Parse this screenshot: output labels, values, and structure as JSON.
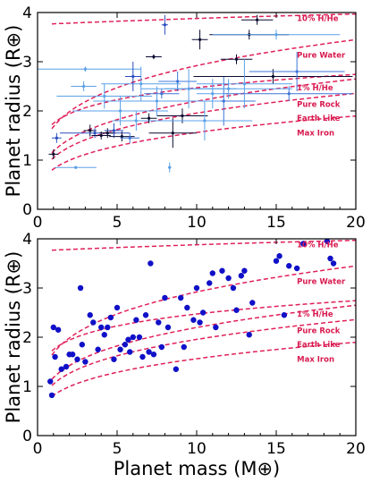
{
  "chart_data": [
    {
      "type": "scatter",
      "xlabel": "",
      "ylabel": "Planet radius (R⊕)",
      "xlim": [
        0,
        20
      ],
      "ylim": [
        0,
        4
      ],
      "xticks": [
        "0",
        "5",
        "10",
        "15",
        "20"
      ],
      "yticks": [
        "0",
        "1",
        "2",
        "3",
        "4"
      ],
      "grid": false,
      "error_bars": true,
      "models": [
        "10% H/He",
        "Pure Water",
        "1% H/He",
        "Pure Rock",
        "Earth Like",
        "Max Iron"
      ],
      "points": [
        {
          "x": 1.0,
          "y": 1.12,
          "xerr": 0.3,
          "yerr": 0.1,
          "color": "#0a0a30"
        },
        {
          "x": 1.2,
          "y": 1.45,
          "xerr": 0.3,
          "yerr": 0.1,
          "color": "#2a4dbf"
        },
        {
          "x": 2.4,
          "y": 0.85,
          "xerr": 1.3,
          "yerr": 0.03,
          "color": "#5aa0e8"
        },
        {
          "x": 3.3,
          "y": 1.6,
          "xerr": 0.4,
          "yerr": 0.12,
          "color": "#0a0a30"
        },
        {
          "x": 3.6,
          "y": 1.55,
          "xerr": 2.2,
          "yerr": 0.1,
          "color": "#2a4dbf"
        },
        {
          "x": 4.0,
          "y": 1.5,
          "xerr": 0.6,
          "yerr": 0.08,
          "color": "#0a0a30"
        },
        {
          "x": 4.4,
          "y": 1.55,
          "xerr": 0.5,
          "yerr": 0.1,
          "color": "#0a0a30"
        },
        {
          "x": 4.8,
          "y": 1.6,
          "xerr": 0.6,
          "yerr": 0.15,
          "color": "#2a4dbf"
        },
        {
          "x": 5.3,
          "y": 1.48,
          "xerr": 0.8,
          "yerr": 0.1,
          "color": "#0a0a30"
        },
        {
          "x": 5.8,
          "y": 1.45,
          "xerr": 0.6,
          "yerr": 0.1,
          "color": "#3d74d8"
        },
        {
          "x": 6.2,
          "y": 1.8,
          "xerr": 1.5,
          "yerr": 0.2,
          "color": "#5aa0e8"
        },
        {
          "x": 7.0,
          "y": 1.85,
          "xerr": 0.5,
          "yerr": 0.1,
          "color": "#0a0a30"
        },
        {
          "x": 7.3,
          "y": 3.1,
          "xerr": 0.5,
          "yerr": 0.05,
          "color": "#0a0a30"
        },
        {
          "x": 7.8,
          "y": 2.35,
          "xerr": 1.1,
          "yerr": 0.1,
          "color": "#3d74d8"
        },
        {
          "x": 8.3,
          "y": 0.85,
          "xerr": 0.1,
          "yerr": 0.1,
          "color": "#5aa0e8"
        },
        {
          "x": 8.5,
          "y": 1.55,
          "xerr": 1.5,
          "yerr": 0.3,
          "color": "#0a0a30"
        },
        {
          "x": 8.8,
          "y": 2.6,
          "xerr": 1.2,
          "yerr": 0.2,
          "color": "#3d74d8"
        },
        {
          "x": 9.1,
          "y": 1.9,
          "xerr": 1.6,
          "yerr": 0.15,
          "color": "#0a0a30"
        },
        {
          "x": 10.2,
          "y": 3.45,
          "xerr": 0.5,
          "yerr": 0.2,
          "color": "#0a0a30"
        },
        {
          "x": 11.0,
          "y": 2.35,
          "xerr": 1.0,
          "yerr": 0.3,
          "color": "#5aa0e8"
        },
        {
          "x": 11.7,
          "y": 2.2,
          "xerr": 2.0,
          "yerr": 0.5,
          "color": "#3d74d8"
        },
        {
          "x": 12.5,
          "y": 3.05,
          "xerr": 1.0,
          "yerr": 0.1,
          "color": "#0a0a30"
        },
        {
          "x": 13.3,
          "y": 3.55,
          "xerr": 2.5,
          "yerr": 0.1,
          "color": "#0a0a30"
        },
        {
          "x": 13.8,
          "y": 3.85,
          "xerr": 1.0,
          "yerr": 0.1,
          "color": "#0a0a30"
        },
        {
          "x": 14.8,
          "y": 2.7,
          "xerr": 5.0,
          "yerr": 0.15,
          "color": "#0a0a30"
        },
        {
          "x": 15.8,
          "y": 2.35,
          "xerr": 4.0,
          "yerr": 0.15,
          "color": "#3d74d8"
        },
        {
          "x": 16.3,
          "y": 2.8,
          "xerr": 3.0,
          "yerr": 0.4,
          "color": "#3d74d8"
        },
        {
          "x": 3.0,
          "y": 2.85,
          "xerr": 3.5,
          "yerr": 0.05,
          "color": "#5aa0e8"
        },
        {
          "x": 5.2,
          "y": 2.0,
          "xerr": 3.0,
          "yerr": 0.3,
          "color": "#5aa0e8"
        },
        {
          "x": 6.5,
          "y": 2.55,
          "xerr": 2.5,
          "yerr": 0.35,
          "color": "#5aa0e8"
        },
        {
          "x": 7.5,
          "y": 2.2,
          "xerr": 4.0,
          "yerr": 0.3,
          "color": "#5aa0e8"
        },
        {
          "x": 9.5,
          "y": 2.45,
          "xerr": 3.0,
          "yerr": 0.4,
          "color": "#5aa0e8"
        },
        {
          "x": 10.5,
          "y": 1.8,
          "xerr": 3.0,
          "yerr": 0.4,
          "color": "#5aa0e8"
        },
        {
          "x": 12.0,
          "y": 2.45,
          "xerr": 4.0,
          "yerr": 0.2,
          "color": "#5aa0e8"
        },
        {
          "x": 13.0,
          "y": 2.55,
          "xerr": 3.0,
          "yerr": 0.5,
          "color": "#5aa0e8"
        },
        {
          "x": 15.0,
          "y": 3.55,
          "xerr": 4.0,
          "yerr": 0.1,
          "color": "#5aa0e8"
        },
        {
          "x": 4.2,
          "y": 2.3,
          "xerr": 3.0,
          "yerr": 0.25,
          "color": "#5aa0e8"
        },
        {
          "x": 2.9,
          "y": 2.5,
          "xerr": 0.8,
          "yerr": 0.1,
          "color": "#5aa0e8"
        },
        {
          "x": 6.0,
          "y": 2.7,
          "xerr": 0.5,
          "yerr": 0.3,
          "color": "#2a4dbf"
        },
        {
          "x": 8.0,
          "y": 3.75,
          "xerr": 0.2,
          "yerr": 0.2,
          "color": "#2a4dbf"
        }
      ]
    },
    {
      "type": "scatter",
      "xlabel": "Planet mass (M⊕)",
      "ylabel": "Planet radius (R⊕)",
      "xlim": [
        0,
        20
      ],
      "ylim": [
        0,
        4
      ],
      "xticks": [
        "0",
        "5",
        "10",
        "15",
        "20"
      ],
      "yticks": [
        "0",
        "1",
        "2",
        "3",
        "4"
      ],
      "grid": false,
      "error_bars": false,
      "marker_color": "#1010c8",
      "models": [
        "10% H/He",
        "Pure Water",
        "1% H/He",
        "Pure Rock",
        "Earth Like",
        "Max Iron"
      ],
      "points": [
        {
          "x": 0.8,
          "y": 1.1
        },
        {
          "x": 0.9,
          "y": 0.82
        },
        {
          "x": 1.0,
          "y": 2.2
        },
        {
          "x": 1.1,
          "y": 1.6
        },
        {
          "x": 1.3,
          "y": 2.15
        },
        {
          "x": 1.5,
          "y": 1.35
        },
        {
          "x": 1.8,
          "y": 1.4
        },
        {
          "x": 2.0,
          "y": 1.65
        },
        {
          "x": 2.2,
          "y": 1.65
        },
        {
          "x": 2.5,
          "y": 1.55
        },
        {
          "x": 2.7,
          "y": 3.0
        },
        {
          "x": 2.8,
          "y": 1.85
        },
        {
          "x": 3.0,
          "y": 1.5
        },
        {
          "x": 3.3,
          "y": 2.45
        },
        {
          "x": 3.5,
          "y": 2.3
        },
        {
          "x": 3.8,
          "y": 1.75
        },
        {
          "x": 4.0,
          "y": 2.2
        },
        {
          "x": 4.2,
          "y": 2.05
        },
        {
          "x": 4.4,
          "y": 2.2
        },
        {
          "x": 4.6,
          "y": 2.4
        },
        {
          "x": 4.8,
          "y": 1.55
        },
        {
          "x": 5.0,
          "y": 2.6
        },
        {
          "x": 5.2,
          "y": 1.75
        },
        {
          "x": 5.5,
          "y": 1.85
        },
        {
          "x": 5.7,
          "y": 1.95
        },
        {
          "x": 5.8,
          "y": 1.7
        },
        {
          "x": 6.0,
          "y": 2.0
        },
        {
          "x": 6.2,
          "y": 2.35
        },
        {
          "x": 6.4,
          "y": 2.0
        },
        {
          "x": 6.6,
          "y": 1.6
        },
        {
          "x": 6.8,
          "y": 2.45
        },
        {
          "x": 7.0,
          "y": 1.7
        },
        {
          "x": 7.1,
          "y": 3.5
        },
        {
          "x": 7.3,
          "y": 1.65
        },
        {
          "x": 7.6,
          "y": 2.3
        },
        {
          "x": 7.8,
          "y": 1.8
        },
        {
          "x": 8.0,
          "y": 2.8
        },
        {
          "x": 8.2,
          "y": 2.2
        },
        {
          "x": 8.7,
          "y": 1.35
        },
        {
          "x": 9.0,
          "y": 2.8
        },
        {
          "x": 9.2,
          "y": 1.8
        },
        {
          "x": 9.4,
          "y": 2.6
        },
        {
          "x": 9.8,
          "y": 2.35
        },
        {
          "x": 10.0,
          "y": 3.0
        },
        {
          "x": 10.2,
          "y": 2.3
        },
        {
          "x": 10.4,
          "y": 2.5
        },
        {
          "x": 10.8,
          "y": 3.1
        },
        {
          "x": 11.0,
          "y": 3.3
        },
        {
          "x": 11.2,
          "y": 2.2
        },
        {
          "x": 11.6,
          "y": 3.35
        },
        {
          "x": 12.0,
          "y": 3.2
        },
        {
          "x": 12.3,
          "y": 3.0
        },
        {
          "x": 12.5,
          "y": 2.55
        },
        {
          "x": 12.8,
          "y": 3.25
        },
        {
          "x": 13.0,
          "y": 3.35
        },
        {
          "x": 13.3,
          "y": 2.05
        },
        {
          "x": 13.5,
          "y": 2.7
        },
        {
          "x": 15.0,
          "y": 3.55
        },
        {
          "x": 15.2,
          "y": 3.65
        },
        {
          "x": 15.5,
          "y": 2.45
        },
        {
          "x": 15.8,
          "y": 3.45
        },
        {
          "x": 16.3,
          "y": 3.4
        },
        {
          "x": 16.7,
          "y": 3.9
        },
        {
          "x": 18.2,
          "y": 3.95
        },
        {
          "x": 18.4,
          "y": 3.6
        },
        {
          "x": 18.6,
          "y": 3.5
        }
      ]
    }
  ]
}
